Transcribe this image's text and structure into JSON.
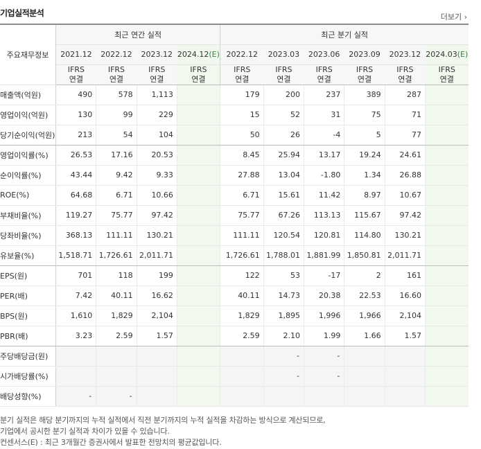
{
  "header": {
    "title": "기업실적분석",
    "more": "더보기"
  },
  "table": {
    "row_header_label": "주요재무정보",
    "group_annual": "최근 연간 실적",
    "group_quarter": "최근 분기 실적",
    "periods": [
      "2021.12",
      "2022.12",
      "2023.12",
      "2024.12",
      "2022.12",
      "2023.03",
      "2023.06",
      "2023.09",
      "2023.12",
      "2024.03"
    ],
    "estimate_suffix": "(E)",
    "standard": [
      "IFRS",
      "연결"
    ],
    "rows": [
      {
        "label": "매출액(억원)",
        "values": [
          "490",
          "578",
          "1,113",
          "",
          "179",
          "200",
          "237",
          "389",
          "287",
          ""
        ]
      },
      {
        "label": "영업이익(억원)",
        "values": [
          "130",
          "99",
          "229",
          "",
          "15",
          "52",
          "31",
          "75",
          "71",
          ""
        ]
      },
      {
        "label": "당기순이익(억원)",
        "values": [
          "213",
          "54",
          "104",
          "",
          "50",
          "26",
          "-4",
          "5",
          "77",
          ""
        ]
      },
      {
        "label": "영업이익률(%)",
        "values": [
          "26.53",
          "17.16",
          "20.53",
          "",
          "8.45",
          "25.94",
          "13.17",
          "19.24",
          "24.61",
          ""
        ]
      },
      {
        "label": "순이익률(%)",
        "values": [
          "43.44",
          "9.42",
          "9.33",
          "",
          "27.88",
          "13.04",
          "-1.80",
          "1.34",
          "26.88",
          ""
        ]
      },
      {
        "label": "ROE(%)",
        "values": [
          "64.68",
          "6.71",
          "10.66",
          "",
          "6.71",
          "15.61",
          "11.42",
          "8.97",
          "10.67",
          ""
        ]
      },
      {
        "label": "부채비율(%)",
        "values": [
          "119.27",
          "75.77",
          "97.42",
          "",
          "75.77",
          "67.26",
          "113.13",
          "115.67",
          "97.42",
          ""
        ]
      },
      {
        "label": "당좌비율(%)",
        "values": [
          "368.13",
          "111.11",
          "130.21",
          "",
          "111.11",
          "120.54",
          "120.81",
          "114.80",
          "130.21",
          ""
        ]
      },
      {
        "label": "유보율(%)",
        "values": [
          "1,518.71",
          "1,726.61",
          "2,011.71",
          "",
          "1,726.61",
          "1,788.01",
          "1,881.99",
          "1,850.81",
          "2,011.71",
          ""
        ]
      },
      {
        "label": "EPS(원)",
        "values": [
          "701",
          "118",
          "199",
          "",
          "122",
          "53",
          "-17",
          "2",
          "161",
          ""
        ]
      },
      {
        "label": "PER(배)",
        "values": [
          "7.42",
          "40.11",
          "16.62",
          "",
          "40.11",
          "14.73",
          "20.38",
          "22.53",
          "16.60",
          ""
        ]
      },
      {
        "label": "BPS(원)",
        "values": [
          "1,610",
          "1,829",
          "2,104",
          "",
          "1,829",
          "1,895",
          "1,996",
          "1,966",
          "2,104",
          ""
        ]
      },
      {
        "label": "PBR(배)",
        "values": [
          "3.23",
          "2.59",
          "1.57",
          "",
          "2.59",
          "2.10",
          "1.99",
          "1.66",
          "1.57",
          ""
        ]
      },
      {
        "label": "주당배당금(원)",
        "values": [
          "",
          "",
          "",
          "",
          "",
          "-",
          "-",
          "",
          "",
          ""
        ]
      },
      {
        "label": "시가배당률(%)",
        "values": [
          "",
          "",
          "",
          "",
          "",
          "-",
          "-",
          "",
          "",
          ""
        ]
      },
      {
        "label": "배당성향(%)",
        "values": [
          "-",
          "-",
          "",
          "",
          "",
          "",
          "",
          "",
          "",
          ""
        ]
      }
    ]
  },
  "notes": [
    "분기 실적은 해당 분기까지의 누적 실적에서 직전 분기까지의 누적 실적을 차감하는 방식으로 계산되므로,",
    "기업에서 공시한 분기 실적과 차이가 있을 수 있습니다.",
    "컨센서스(E) : 최근 3개월간 증권사에서 발표한 전망치의 평균값입니다."
  ],
  "colors": {
    "ifrs": "#e86a10",
    "estimate_bg": "#f1f8ee",
    "estimate_mark": "#2e8b3a",
    "negative": "#e8292c"
  }
}
